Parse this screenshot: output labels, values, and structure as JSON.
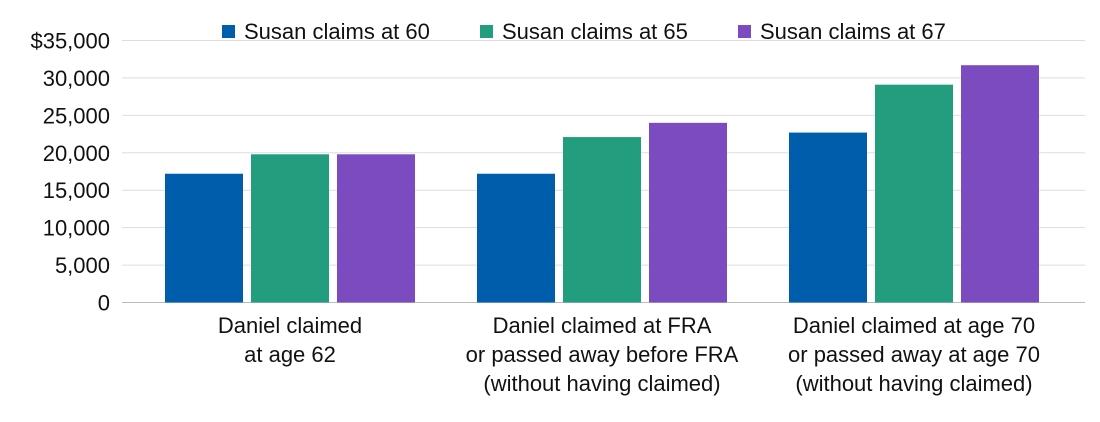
{
  "chart_data": {
    "type": "bar",
    "title": "",
    "xlabel": "",
    "ylabel": "",
    "ylim": [
      0,
      35000
    ],
    "yticks": [
      0,
      5000,
      10000,
      15000,
      20000,
      25000,
      30000,
      35000
    ],
    "ytick_labels": [
      "0",
      "5,000",
      "10,000",
      "15,000",
      "20,000",
      "25,000",
      "30,000",
      "$35,000"
    ],
    "grid": true,
    "legend_position": "top",
    "categories": [
      [
        "Daniel claimed",
        "at age 62"
      ],
      [
        "Daniel claimed at FRA",
        "or passed away before FRA",
        "(without having claimed)"
      ],
      [
        "Daniel claimed at age 70",
        "or passed away at age 70",
        "(without having claimed)"
      ]
    ],
    "series": [
      {
        "name": "Susan claims at 60",
        "color": "#005dab",
        "values": [
          17200,
          17200,
          22700
        ]
      },
      {
        "name": "Susan claims at 65",
        "color": "#229e7e",
        "values": [
          19800,
          22100,
          29100
        ]
      },
      {
        "name": "Susan claims at 67",
        "color": "#7b4bbf",
        "values": [
          19800,
          24000,
          31700
        ]
      }
    ]
  }
}
